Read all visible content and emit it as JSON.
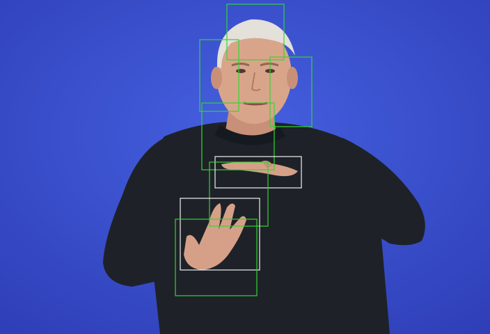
{
  "scene": {
    "background_color": "#3a4fd0",
    "sweater_color": "#1e2228",
    "skin_color": "#d9a58a",
    "hair_color": "#e4e0da"
  },
  "detection_boxes": [
    {
      "kind": "green",
      "color": "#33d433"
    },
    {
      "kind": "green",
      "color": "#33d433"
    },
    {
      "kind": "green",
      "color": "#33d433"
    },
    {
      "kind": "green",
      "color": "#33d433"
    },
    {
      "kind": "white",
      "color": "#f0f0f0"
    },
    {
      "kind": "green",
      "color": "#33d433"
    },
    {
      "kind": "white",
      "color": "#f0f0f0"
    },
    {
      "kind": "green",
      "color": "#33d433"
    }
  ]
}
